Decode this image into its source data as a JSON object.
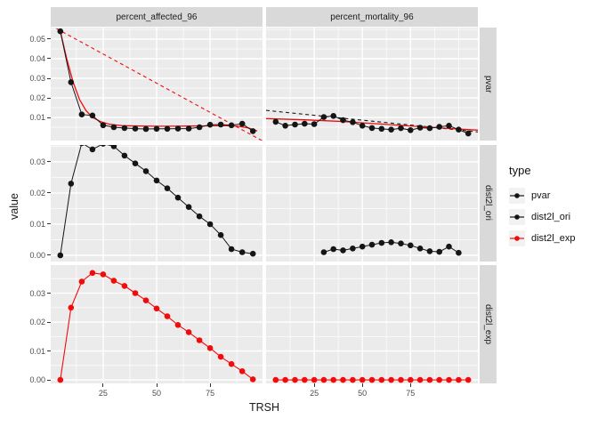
{
  "chart_data": {
    "type": "line",
    "title": "",
    "xlabel": "TRSH",
    "ylabel": "value",
    "facet_cols": [
      "percent_affected_96",
      "percent_mortality_96"
    ],
    "facet_rows": [
      "pvar",
      "dist2l_ori",
      "dist2l_exp"
    ],
    "legend": {
      "title": "type",
      "position": "right",
      "entries": [
        {
          "label": "pvar",
          "color": "black"
        },
        {
          "label": "dist2l_ori",
          "color": "black"
        },
        {
          "label": "dist2l_exp",
          "color": "red"
        }
      ]
    },
    "colors": {
      "black": "#151515",
      "red": "#f20b0b",
      "panel_bg": "#ebebeb",
      "strip_bg": "#d9d9d9",
      "grid": "#ffffff",
      "tick_text": "#4d4d4d",
      "legend_key_bg": "#f2f2f2"
    },
    "x_ticks": [
      25,
      50,
      75
    ],
    "col_x_domains": [
      [
        0.5,
        99.5
      ],
      [
        0,
        110
      ]
    ],
    "col_x_minors": [
      [
        12.5,
        37.5,
        62.5,
        87.5
      ],
      [
        12.5,
        37.5,
        62.5,
        87.5,
        100
      ]
    ],
    "rows": [
      {
        "label": "pvar",
        "y_domain": [
          -0.0018,
          0.0559
        ],
        "y_ticks": [
          0.01,
          0.02,
          0.03,
          0.04,
          0.05
        ],
        "y_minor": [
          0.005,
          0.015,
          0.025,
          0.035,
          0.045,
          0.055
        ]
      },
      {
        "label": "dist2l_ori",
        "y_domain": [
          -0.002,
          0.0354
        ],
        "y_ticks": [
          0.0,
          0.01,
          0.02,
          0.03
        ],
        "y_minor": [
          0.005,
          0.015,
          0.025,
          0.035
        ]
      },
      {
        "label": "dist2l_exp",
        "y_domain": [
          -0.0012,
          0.0397
        ],
        "y_ticks": [
          0.0,
          0.01,
          0.02,
          0.03
        ],
        "y_minor": [
          0.005,
          0.015,
          0.025,
          0.035
        ]
      }
    ],
    "panels": [
      {
        "row": 0,
        "col": 0,
        "series": [
          {
            "name": "linear-fit",
            "color": "red",
            "dash": true,
            "lw": 1.1,
            "marker": false,
            "x": [
              0.5,
              99.5
            ],
            "y": [
              0.057,
              -0.002
            ]
          },
          {
            "name": "exp-fit",
            "color": "red",
            "dash": false,
            "lw": 1.3,
            "marker": false,
            "x": [
              5,
              8,
              11,
              14,
              17,
              20,
              24,
              28,
              34,
              42,
              50,
              58,
              66,
              74,
              82,
              88,
              93,
              97
            ],
            "y": [
              0.054,
              0.04,
              0.028,
              0.019,
              0.0135,
              0.01,
              0.0078,
              0.0065,
              0.0058,
              0.0056,
              0.0055,
              0.0055,
              0.0056,
              0.0057,
              0.0058,
              0.0055,
              0.0046,
              0.0031
            ]
          },
          {
            "name": "pvar-points",
            "color": "black",
            "dash": false,
            "lw": 1.0,
            "marker": true,
            "x": [
              5,
              10,
              15,
              20,
              25,
              30,
              35,
              40,
              45,
              50,
              55,
              60,
              65,
              70,
              75,
              80,
              85,
              90,
              95
            ],
            "y": [
              0.054,
              0.028,
              0.0115,
              0.011,
              0.006,
              0.005,
              0.0046,
              0.0043,
              0.0041,
              0.0042,
              0.0042,
              0.0043,
              0.0043,
              0.005,
              0.0063,
              0.0064,
              0.006,
              0.0068,
              0.003
            ]
          }
        ]
      },
      {
        "row": 0,
        "col": 1,
        "series": [
          {
            "name": "linear-fit",
            "color": "black",
            "dash": true,
            "lw": 1.1,
            "marker": false,
            "x": [
              0,
              110
            ],
            "y": [
              0.0136,
              0.0026
            ]
          },
          {
            "name": "exp-fit",
            "color": "red",
            "dash": false,
            "lw": 1.3,
            "marker": false,
            "x": [
              0,
              20,
              40,
              60,
              80,
              95,
              110
            ],
            "y": [
              0.0094,
              0.0088,
              0.0079,
              0.0066,
              0.0053,
              0.0044,
              0.0035
            ]
          },
          {
            "name": "pvar-points",
            "color": "black",
            "dash": false,
            "lw": 1.0,
            "marker": true,
            "x": [
              5,
              10,
              15,
              20,
              25,
              30,
              35,
              40,
              45,
              50,
              55,
              60,
              65,
              70,
              75,
              80,
              85,
              90,
              95,
              100,
              105
            ],
            "y": [
              0.0078,
              0.0058,
              0.0064,
              0.0068,
              0.0066,
              0.0102,
              0.0108,
              0.0086,
              0.0076,
              0.0058,
              0.0046,
              0.0042,
              0.0038,
              0.0045,
              0.0035,
              0.0048,
              0.0045,
              0.0052,
              0.0058,
              0.0038,
              0.0018
            ]
          }
        ]
      },
      {
        "row": 1,
        "col": 0,
        "series": [
          {
            "name": "dist2l-ori-points",
            "color": "black",
            "dash": false,
            "lw": 1.0,
            "marker": true,
            "x": [
              5,
              10,
              15,
              20,
              25,
              30,
              35,
              40,
              45,
              50,
              55,
              60,
              65,
              70,
              75,
              80,
              85,
              90,
              95
            ],
            "y": [
              0.0,
              0.023,
              0.036,
              0.034,
              0.0358,
              0.035,
              0.032,
              0.0295,
              0.027,
              0.024,
              0.0215,
              0.0185,
              0.0155,
              0.0125,
              0.01,
              0.0065,
              0.002,
              0.001,
              0.0005
            ]
          }
        ]
      },
      {
        "row": 1,
        "col": 1,
        "series": [
          {
            "name": "dist2l-ori-points",
            "color": "black",
            "dash": false,
            "lw": 1.0,
            "marker": true,
            "x": [
              30,
              35,
              40,
              45,
              50,
              55,
              60,
              65,
              70,
              75,
              80,
              85,
              90,
              95,
              100
            ],
            "y": [
              0.001,
              0.002,
              0.0016,
              0.0022,
              0.0028,
              0.0034,
              0.004,
              0.0042,
              0.0038,
              0.0032,
              0.0022,
              0.0013,
              0.0011,
              0.0028,
              0.0008
            ]
          }
        ]
      },
      {
        "row": 2,
        "col": 0,
        "series": [
          {
            "name": "dist2l-exp-points",
            "color": "red",
            "dash": false,
            "lw": 1.1,
            "marker": true,
            "x": [
              5,
              10,
              15,
              20,
              25,
              30,
              35,
              40,
              45,
              50,
              55,
              60,
              65,
              70,
              75,
              80,
              85,
              90,
              95
            ],
            "y": [
              0.0,
              0.025,
              0.034,
              0.037,
              0.0365,
              0.0343,
              0.0325,
              0.03,
              0.0275,
              0.0247,
              0.022,
              0.019,
              0.0165,
              0.0137,
              0.011,
              0.008,
              0.0055,
              0.003,
              0.0002
            ]
          }
        ]
      },
      {
        "row": 2,
        "col": 1,
        "series": [
          {
            "name": "dist2l-exp-points",
            "color": "red",
            "dash": false,
            "lw": 1.1,
            "marker": true,
            "x": [
              5,
              10,
              15,
              20,
              25,
              30,
              35,
              40,
              45,
              50,
              55,
              60,
              65,
              70,
              75,
              80,
              85,
              90,
              95,
              100,
              105
            ],
            "y": [
              0.0,
              0.0,
              0.0,
              0.0,
              0.0,
              0.0,
              0.0,
              0.0,
              0.0,
              0.0,
              0.0,
              0.0,
              0.0,
              0.0,
              0.0,
              0.0,
              0.0,
              0.0,
              0.0,
              0.0,
              0.0
            ]
          }
        ]
      }
    ]
  }
}
